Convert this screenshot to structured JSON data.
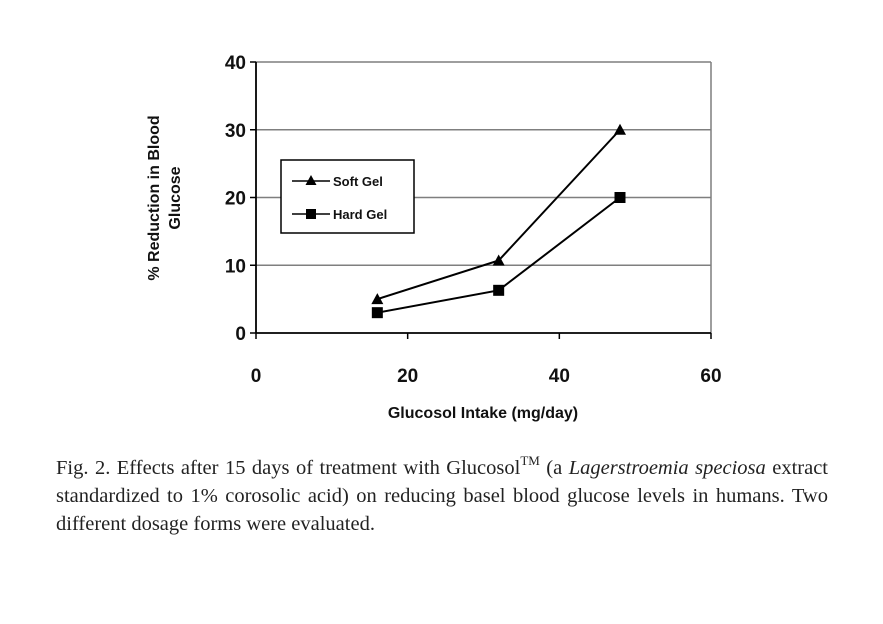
{
  "chart_data": {
    "type": "line",
    "x": [
      16,
      32,
      48
    ],
    "series": [
      {
        "name": "Soft Gel",
        "marker": "triangle",
        "values": [
          5,
          10.7,
          30
        ]
      },
      {
        "name": "Hard Gel",
        "marker": "square",
        "values": [
          3,
          6.3,
          20
        ]
      }
    ],
    "title": "",
    "xlabel": "Glucosol Intake (mg/day)",
    "ylabel_line1": "% Reduction in Blood",
    "ylabel_line2": "Glucose",
    "xlim": [
      0,
      60
    ],
    "ylim": [
      0,
      40
    ],
    "xticks": [
      0,
      20,
      40,
      60
    ],
    "yticks": [
      0,
      10,
      20,
      30,
      40
    ],
    "xtick_labels": [
      "0",
      "20",
      "40",
      "60"
    ],
    "ytick_labels": [
      "0",
      "10",
      "20",
      "30",
      "40"
    ],
    "grid": "horizontal",
    "legend_position": "upper-left",
    "line_color": "#000000",
    "grid_color": "#7f7f7f"
  },
  "caption": {
    "prefix": "Fig. 2. Effects after 15 days of treatment with Glucosol",
    "superscript": "TM",
    "mid1": " (a ",
    "italic1": "Lagerstroemia speciosa",
    "mid2": " extract standardized to 1% corosolic acid) on reducing basel blood glucose levels in humans. Two different dosage forms were evaluated."
  }
}
